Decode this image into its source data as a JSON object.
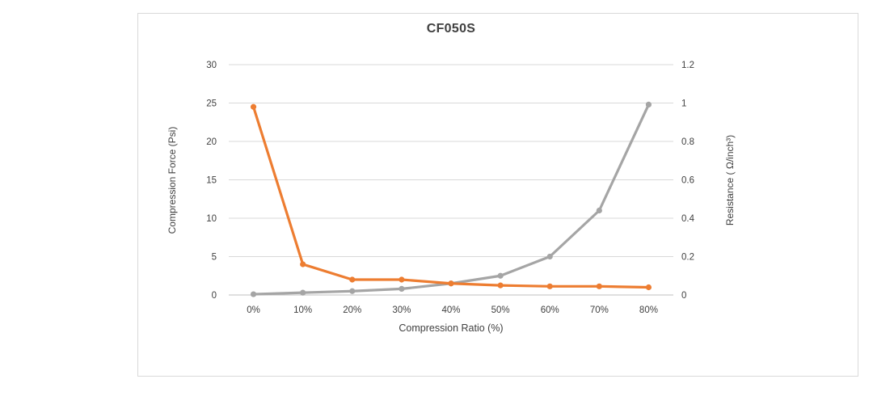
{
  "panel": {
    "background": "#ffffff",
    "border_color": "#d9d9d9"
  },
  "chart_data": {
    "type": "line",
    "title": "CF050S",
    "categories": [
      "0%",
      "10%",
      "20%",
      "30%",
      "40%",
      "50%",
      "60%",
      "70%",
      "80%"
    ],
    "xlabel": "Compression Ratio  (%)",
    "grid": true,
    "gridline_color": "#d9d9d9",
    "baseline_color": "#bfbfbf",
    "legend": "none",
    "axes": {
      "left": {
        "label": "Compression Force  (Psi)",
        "min": 0,
        "max": 30,
        "ticks": [
          "0",
          "5",
          "10",
          "15",
          "20",
          "25",
          "30"
        ]
      },
      "right": {
        "label": "Resistance ( Ω/inch³)",
        "min": 0,
        "max": 1.2,
        "ticks": [
          "0",
          "0.2",
          "0.4",
          "0.6",
          "0.8",
          "1",
          "1.2"
        ]
      }
    },
    "series": [
      {
        "name": "Compression Force",
        "axis": "left",
        "color": "#a5a5a5",
        "values": [
          0.1,
          0.3,
          0.5,
          0.8,
          1.5,
          2.5,
          5.0,
          11.0,
          24.8
        ]
      },
      {
        "name": "Resistance",
        "axis": "right",
        "color": "#ed7d31",
        "values": [
          0.98,
          0.16,
          0.08,
          0.08,
          0.06,
          0.05,
          0.045,
          0.045,
          0.04
        ]
      }
    ]
  }
}
